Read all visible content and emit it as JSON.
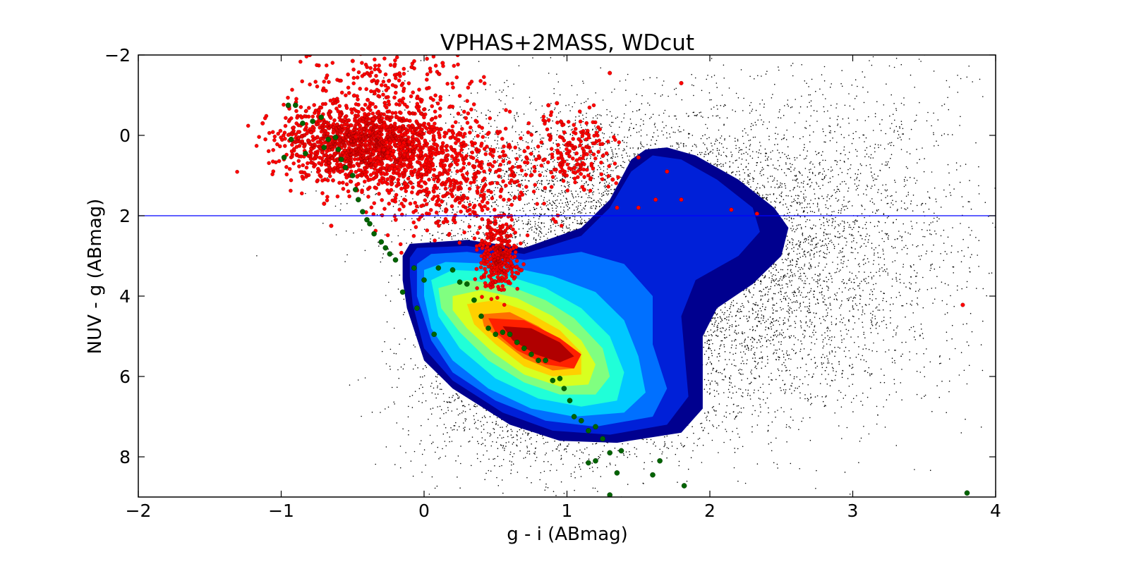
{
  "chart_data": {
    "type": "scatter",
    "title": "VPHAS+2MASS, WDcut",
    "xlabel": "g - i (ABmag)",
    "ylabel": "NUV - g (ABmag)",
    "xlim": [
      -2,
      4
    ],
    "ylim": [
      9,
      -2
    ],
    "y_inverted": true,
    "xticks": [
      -2,
      -1,
      0,
      1,
      2,
      3,
      4
    ],
    "xtick_labels": [
      "−2",
      "−1",
      "0",
      "1",
      "2",
      "3",
      "4"
    ],
    "yticks": [
      -2,
      0,
      2,
      4,
      6,
      8
    ],
    "ytick_labels": [
      "−2",
      "0",
      "2",
      "4",
      "6",
      "8"
    ],
    "grid": false,
    "legend": "none",
    "reference_line": {
      "orientation": "horizontal",
      "y": 2,
      "color": "#0000ff"
    },
    "colors": {
      "background_points": "#000000",
      "red_points": "#ff0000",
      "green_points": "#006400",
      "density_levels": [
        "#00008f",
        "#0020d8",
        "#0070ff",
        "#00c8ff",
        "#20ffd8",
        "#80ff80",
        "#d8ff20",
        "#ffd000",
        "#ff7000",
        "#ff2000",
        "#b00000"
      ]
    },
    "series": [
      {
        "kind": "scatter-cloud",
        "color": "#000000",
        "clusters": [
          {
            "center": [
              1.75,
              3.6
            ],
            "spread": [
              0.75,
              1.85
            ],
            "weight": 0.62
          },
          {
            "center": [
              1.1,
              1.3
            ],
            "spread": [
              0.75,
              1.2
            ],
            "weight": 0.14
          },
          {
            "center": [
              0.9,
              6.4
            ],
            "spread": [
              0.5,
              1.05
            ],
            "weight": 0.14
          },
          {
            "center": [
              2.9,
              2.5
            ],
            "spread": [
              0.55,
              2.3
            ],
            "weight": 0.1
          }
        ]
      },
      {
        "kind": "density-contours",
        "levels": [
          [
            [
              -0.15,
              3.0
            ],
            [
              -0.1,
              2.7
            ],
            [
              0.3,
              2.6
            ],
            [
              0.7,
              2.8
            ],
            [
              1.1,
              2.3
            ],
            [
              1.3,
              1.6
            ],
            [
              1.45,
              0.6
            ],
            [
              1.55,
              0.35
            ],
            [
              1.7,
              0.3
            ],
            [
              1.9,
              0.5
            ],
            [
              2.2,
              1.1
            ],
            [
              2.45,
              1.8
            ],
            [
              2.55,
              2.3
            ],
            [
              2.5,
              3.0
            ],
            [
              2.3,
              3.7
            ],
            [
              2.05,
              4.3
            ],
            [
              1.95,
              5.0
            ],
            [
              1.95,
              6.8
            ],
            [
              1.8,
              7.4
            ],
            [
              1.35,
              7.65
            ],
            [
              0.95,
              7.6
            ],
            [
              0.6,
              7.2
            ],
            [
              0.2,
              6.3
            ],
            [
              0.0,
              5.6
            ],
            [
              -0.12,
              4.3
            ],
            [
              -0.15,
              3.6
            ]
          ],
          [
            [
              -0.1,
              3.05
            ],
            [
              -0.05,
              2.8
            ],
            [
              0.3,
              2.75
            ],
            [
              0.7,
              2.95
            ],
            [
              1.1,
              2.5
            ],
            [
              1.3,
              1.8
            ],
            [
              1.45,
              0.9
            ],
            [
              1.6,
              0.5
            ],
            [
              1.8,
              0.6
            ],
            [
              2.05,
              1.1
            ],
            [
              2.3,
              1.8
            ],
            [
              2.35,
              2.4
            ],
            [
              2.2,
              3.0
            ],
            [
              1.9,
              3.6
            ],
            [
              1.8,
              4.5
            ],
            [
              1.85,
              6.5
            ],
            [
              1.7,
              7.2
            ],
            [
              1.3,
              7.45
            ],
            [
              0.9,
              7.35
            ],
            [
              0.55,
              6.9
            ],
            [
              0.2,
              6.1
            ],
            [
              0.0,
              5.3
            ],
            [
              -0.08,
              4.2
            ],
            [
              -0.1,
              3.5
            ]
          ],
          [
            [
              -0.05,
              3.2
            ],
            [
              0.05,
              2.95
            ],
            [
              0.3,
              2.9
            ],
            [
              0.7,
              3.1
            ],
            [
              1.1,
              2.9
            ],
            [
              1.4,
              3.2
            ],
            [
              1.6,
              4.0
            ],
            [
              1.6,
              5.2
            ],
            [
              1.7,
              6.3
            ],
            [
              1.6,
              7.0
            ],
            [
              1.2,
              7.25
            ],
            [
              0.85,
              7.1
            ],
            [
              0.5,
              6.6
            ],
            [
              0.2,
              5.9
            ],
            [
              0.05,
              5.1
            ],
            [
              -0.05,
              4.0
            ]
          ],
          [
            [
              0.0,
              3.35
            ],
            [
              0.15,
              3.15
            ],
            [
              0.5,
              3.2
            ],
            [
              0.9,
              3.5
            ],
            [
              1.2,
              3.9
            ],
            [
              1.4,
              4.6
            ],
            [
              1.5,
              5.5
            ],
            [
              1.55,
              6.4
            ],
            [
              1.4,
              6.9
            ],
            [
              1.05,
              7.0
            ],
            [
              0.75,
              6.8
            ],
            [
              0.45,
              6.3
            ],
            [
              0.2,
              5.6
            ],
            [
              0.05,
              4.8
            ],
            [
              0.0,
              4.0
            ]
          ],
          [
            [
              0.05,
              3.6
            ],
            [
              0.2,
              3.35
            ],
            [
              0.5,
              3.4
            ],
            [
              0.85,
              3.8
            ],
            [
              1.1,
              4.3
            ],
            [
              1.3,
              5.0
            ],
            [
              1.4,
              5.9
            ],
            [
              1.35,
              6.6
            ],
            [
              1.1,
              6.75
            ],
            [
              0.8,
              6.55
            ],
            [
              0.5,
              6.05
            ],
            [
              0.25,
              5.3
            ],
            [
              0.1,
              4.5
            ]
          ],
          [
            [
              0.1,
              3.8
            ],
            [
              0.3,
              3.6
            ],
            [
              0.6,
              3.75
            ],
            [
              0.85,
              4.1
            ],
            [
              1.05,
              4.55
            ],
            [
              1.25,
              5.3
            ],
            [
              1.3,
              6.0
            ],
            [
              1.2,
              6.45
            ],
            [
              0.95,
              6.45
            ],
            [
              0.7,
              6.15
            ],
            [
              0.45,
              5.6
            ],
            [
              0.25,
              4.9
            ],
            [
              0.12,
              4.3
            ]
          ],
          [
            [
              0.2,
              4.0
            ],
            [
              0.4,
              3.85
            ],
            [
              0.65,
              4.05
            ],
            [
              0.9,
              4.5
            ],
            [
              1.1,
              5.1
            ],
            [
              1.2,
              5.7
            ],
            [
              1.15,
              6.2
            ],
            [
              0.95,
              6.25
            ],
            [
              0.7,
              5.95
            ],
            [
              0.48,
              5.4
            ],
            [
              0.3,
              4.8
            ],
            [
              0.2,
              4.35
            ]
          ],
          [
            [
              0.3,
              4.2
            ],
            [
              0.5,
              4.1
            ],
            [
              0.7,
              4.35
            ],
            [
              0.95,
              4.85
            ],
            [
              1.1,
              5.4
            ],
            [
              1.1,
              5.95
            ],
            [
              0.9,
              6.0
            ],
            [
              0.7,
              5.75
            ],
            [
              0.5,
              5.2
            ],
            [
              0.35,
              4.7
            ]
          ],
          [
            [
              0.4,
              4.45
            ],
            [
              0.6,
              4.4
            ],
            [
              0.8,
              4.75
            ],
            [
              1.0,
              5.25
            ],
            [
              1.05,
              5.8
            ],
            [
              0.9,
              5.85
            ],
            [
              0.7,
              5.55
            ],
            [
              0.52,
              5.05
            ],
            [
              0.42,
              4.75
            ]
          ],
          [
            [
              0.45,
              4.55
            ],
            [
              0.7,
              4.6
            ],
            [
              0.95,
              5.05
            ],
            [
              1.1,
              5.45
            ],
            [
              1.05,
              5.8
            ],
            [
              0.85,
              5.7
            ],
            [
              0.65,
              5.35
            ],
            [
              0.5,
              4.9
            ]
          ],
          [
            [
              0.55,
              4.75
            ],
            [
              0.75,
              4.8
            ],
            [
              0.95,
              5.15
            ],
            [
              1.05,
              5.5
            ],
            [
              0.95,
              5.65
            ],
            [
              0.78,
              5.45
            ],
            [
              0.62,
              5.1
            ]
          ]
        ]
      },
      {
        "kind": "scatter-cloud",
        "color": "#ff0000",
        "clusters": [
          {
            "center": [
              -0.4,
              0.2
            ],
            "spread": [
              0.3,
              0.5
            ],
            "weight": 0.55
          },
          {
            "center": [
              0.2,
              1.0
            ],
            "spread": [
              0.3,
              0.7
            ],
            "weight": 0.2
          },
          {
            "center": [
              0.52,
              3.0
            ],
            "spread": [
              0.07,
              0.45
            ],
            "weight": 0.12
          },
          {
            "center": [
              1.05,
              0.5
            ],
            "spread": [
              0.15,
              0.5
            ],
            "weight": 0.07
          },
          {
            "center": [
              -0.2,
              -1.3
            ],
            "spread": [
              0.3,
              0.35
            ],
            "weight": 0.06
          }
        ]
      },
      {
        "kind": "points",
        "color": "#ff0000",
        "points": [
          [
            -1.13,
            -0.3
          ],
          [
            -0.8,
            -2.0
          ],
          [
            -0.7,
            1.7
          ],
          [
            -0.65,
            2.25
          ],
          [
            -0.5,
            -1.85
          ],
          [
            0.13,
            -1.8
          ],
          [
            1.3,
            -1.55
          ],
          [
            1.8,
            -1.3
          ],
          [
            0.87,
            -0.75
          ],
          [
            0.93,
            -0.8
          ],
          [
            1.5,
            0.55
          ],
          [
            1.7,
            0.9
          ],
          [
            1.32,
            1.1
          ],
          [
            1.35,
            1.8
          ],
          [
            1.5,
            1.8
          ],
          [
            1.62,
            1.6
          ],
          [
            1.8,
            1.6
          ],
          [
            1.12,
            1.35
          ],
          [
            2.15,
            1.85
          ],
          [
            2.33,
            1.95
          ],
          [
            0.92,
            2.15
          ],
          [
            3.77,
            4.22
          ]
        ]
      },
      {
        "kind": "points",
        "color": "#006400",
        "points": [
          [
            -0.95,
            -0.75
          ],
          [
            -0.9,
            -0.75
          ],
          [
            -0.98,
            0.55
          ],
          [
            -0.93,
            0.1
          ],
          [
            -0.85,
            -0.3
          ],
          [
            -0.83,
            0.45
          ],
          [
            -0.78,
            -0.35
          ],
          [
            -0.72,
            -0.45
          ],
          [
            -0.7,
            0.3
          ],
          [
            -0.67,
            0.1
          ],
          [
            -0.62,
            0.05
          ],
          [
            -0.6,
            0.35
          ],
          [
            -0.58,
            0.6
          ],
          [
            -0.55,
            0.8
          ],
          [
            -0.5,
            1.0
          ],
          [
            -0.48,
            1.35
          ],
          [
            -0.46,
            1.6
          ],
          [
            -0.43,
            1.9
          ],
          [
            -0.4,
            2.1
          ],
          [
            -0.38,
            2.2
          ],
          [
            -0.35,
            2.45
          ],
          [
            -0.3,
            2.65
          ],
          [
            -0.27,
            2.8
          ],
          [
            -0.24,
            2.95
          ],
          [
            -0.2,
            3.1
          ],
          [
            -0.15,
            3.9
          ],
          [
            -0.07,
            3.3
          ],
          [
            -0.05,
            4.3
          ],
          [
            0.0,
            3.6
          ],
          [
            0.07,
            4.95
          ],
          [
            0.1,
            3.3
          ],
          [
            0.2,
            3.35
          ],
          [
            0.25,
            3.65
          ],
          [
            0.3,
            3.7
          ],
          [
            0.35,
            4.1
          ],
          [
            0.4,
            4.5
          ],
          [
            0.45,
            4.8
          ],
          [
            0.5,
            4.95
          ],
          [
            0.55,
            4.9
          ],
          [
            0.6,
            4.95
          ],
          [
            0.65,
            5.15
          ],
          [
            0.7,
            5.3
          ],
          [
            0.75,
            5.45
          ],
          [
            0.8,
            5.6
          ],
          [
            0.85,
            5.6
          ],
          [
            0.9,
            6.1
          ],
          [
            0.95,
            6.05
          ],
          [
            0.98,
            6.3
          ],
          [
            1.02,
            6.6
          ],
          [
            1.05,
            7.0
          ],
          [
            1.1,
            7.1
          ],
          [
            1.15,
            7.35
          ],
          [
            1.2,
            7.25
          ],
          [
            1.25,
            7.55
          ],
          [
            1.3,
            7.9
          ],
          [
            1.38,
            7.85
          ],
          [
            1.15,
            8.15
          ],
          [
            1.2,
            8.1
          ],
          [
            1.35,
            8.4
          ],
          [
            1.6,
            8.45
          ],
          [
            1.65,
            8.1
          ],
          [
            1.82,
            8.72
          ],
          [
            1.3,
            8.95
          ],
          [
            3.8,
            8.9
          ]
        ]
      }
    ]
  }
}
